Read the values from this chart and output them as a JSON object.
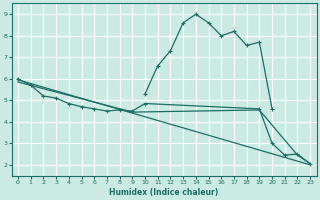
{
  "bg_color": "#cceae4",
  "grid_color": "#ffffff",
  "line_color": "#1a6e64",
  "line_width": 0.9,
  "marker": "+",
  "markersize": 3,
  "markeredgewidth": 0.8,
  "xlabel": "Humidex (Indice chaleur)",
  "xlabel_fontsize": 5.5,
  "xlabel_bold": true,
  "xlim": [
    -0.5,
    23.5
  ],
  "ylim": [
    1.5,
    9.5
  ],
  "xticks": [
    0,
    1,
    2,
    3,
    4,
    5,
    6,
    7,
    8,
    9,
    10,
    11,
    12,
    13,
    14,
    15,
    16,
    17,
    18,
    19,
    20,
    21,
    22,
    23
  ],
  "yticks": [
    2,
    3,
    4,
    5,
    6,
    7,
    8,
    9
  ],
  "tick_fontsize": 4.5,
  "curves": [
    {
      "x": [
        10,
        11,
        12,
        13,
        14,
        15,
        16,
        17,
        18,
        19,
        20
      ],
      "y": [
        5.3,
        6.6,
        7.3,
        8.6,
        9.0,
        8.6,
        8.0,
        8.2,
        7.55,
        7.7,
        4.6
      ],
      "marker": true
    },
    {
      "x": [
        0,
        1,
        2,
        3,
        4,
        5,
        6,
        7,
        8,
        9,
        10,
        19,
        20,
        21,
        22,
        23
      ],
      "y": [
        6.0,
        5.7,
        5.2,
        5.1,
        4.85,
        4.7,
        4.6,
        4.5,
        4.55,
        4.5,
        4.85,
        4.6,
        3.0,
        2.45,
        2.5,
        2.05
      ],
      "marker": true
    },
    {
      "x": [
        0,
        23
      ],
      "y": [
        5.95,
        2.0
      ],
      "marker": false
    },
    {
      "x": [
        0,
        9,
        19,
        22,
        23
      ],
      "y": [
        5.85,
        4.45,
        4.55,
        2.45,
        2.05
      ],
      "marker": false
    }
  ]
}
